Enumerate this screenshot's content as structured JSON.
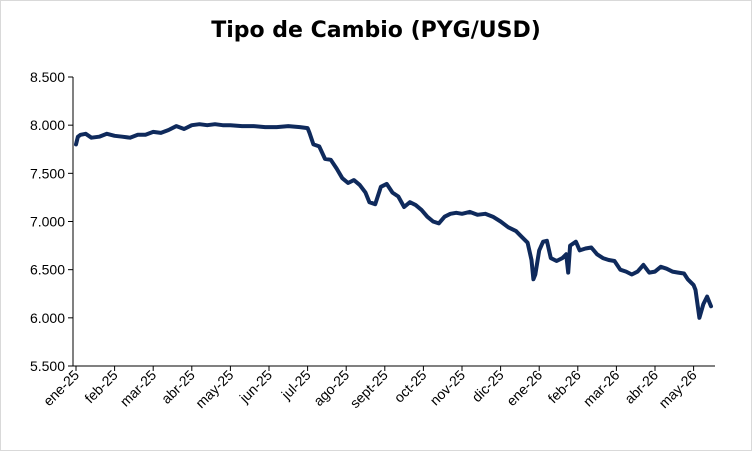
{
  "chart_data": {
    "type": "line",
    "title": "Tipo de Cambio (PYG/USD)",
    "xlabel": "",
    "ylabel": "",
    "ylim": [
      5500,
      8500
    ],
    "y_ticks": [
      5500,
      6000,
      6500,
      7000,
      7500,
      8000,
      8500
    ],
    "y_tick_labels": [
      "5.500",
      "6.000",
      "6.500",
      "7.000",
      "7.500",
      "8.000",
      "8.500"
    ],
    "x_tick_labels": [
      "ene-25",
      "feb-25",
      "mar-25",
      "abr-25",
      "may-25",
      "jun-25",
      "jul-25",
      "ago-25",
      "sept-25",
      "oct-25",
      "nov-25",
      "dic-25",
      "ene-26",
      "feb-26",
      "mar-26",
      "abr-26",
      "may-26"
    ],
    "grid": false,
    "legend": "none",
    "line_color": "#0f2a5c",
    "series": [
      {
        "x": [
          0,
          0.05,
          0.12,
          0.25,
          0.4,
          0.6,
          0.8,
          1.0,
          1.2,
          1.4,
          1.6,
          1.8,
          2.0,
          2.2,
          2.4,
          2.6,
          2.8,
          3.0,
          3.2,
          3.4,
          3.6,
          3.8,
          4.0,
          4.3,
          4.6,
          4.9,
          5.2,
          5.5,
          5.8,
          6.0,
          6.05,
          6.15,
          6.3,
          6.45,
          6.6,
          6.75,
          6.9,
          7.05,
          7.2,
          7.35,
          7.5,
          7.6,
          7.75,
          7.9,
          8.05,
          8.2,
          8.35,
          8.5,
          8.65,
          8.8,
          8.95,
          9.1,
          9.25,
          9.4,
          9.55,
          9.7,
          9.85,
          10.0,
          10.2,
          10.4,
          10.6,
          10.8,
          11.0,
          11.2,
          11.4,
          11.55,
          11.7,
          11.8,
          11.85,
          11.9,
          12.0,
          12.1,
          12.2,
          12.3,
          12.45,
          12.6,
          12.7,
          12.75,
          12.8,
          12.95,
          13.05,
          13.2,
          13.35,
          13.5,
          13.65,
          13.8,
          13.95,
          14.1,
          14.25,
          14.4,
          14.55,
          14.7,
          14.85,
          15.0,
          15.15,
          15.3,
          15.45,
          15.6,
          15.75,
          15.85,
          15.95,
          16.0,
          16.05,
          16.15,
          16.25,
          16.35,
          16.45
        ],
        "values": [
          7800,
          7880,
          7900,
          7910,
          7870,
          7880,
          7910,
          7890,
          7880,
          7870,
          7900,
          7900,
          7930,
          7920,
          7950,
          7990,
          7960,
          8000,
          8010,
          8000,
          8010,
          8000,
          8000,
          7990,
          7990,
          7980,
          7980,
          7990,
          7980,
          7970,
          7920,
          7800,
          7780,
          7650,
          7640,
          7550,
          7450,
          7400,
          7430,
          7380,
          7300,
          7200,
          7180,
          7360,
          7390,
          7300,
          7260,
          7150,
          7200,
          7170,
          7120,
          7050,
          7000,
          6980,
          7050,
          7080,
          7090,
          7080,
          7100,
          7070,
          7080,
          7050,
          7000,
          6940,
          6900,
          6840,
          6780,
          6600,
          6400,
          6450,
          6700,
          6790,
          6800,
          6620,
          6590,
          6620,
          6660,
          6470,
          6750,
          6790,
          6700,
          6720,
          6730,
          6660,
          6620,
          6600,
          6590,
          6500,
          6480,
          6450,
          6480,
          6550,
          6470,
          6480,
          6530,
          6510,
          6480,
          6470,
          6460,
          6400,
          6360,
          6340,
          6290,
          6000,
          6140,
          6220,
          6120
        ]
      }
    ]
  }
}
